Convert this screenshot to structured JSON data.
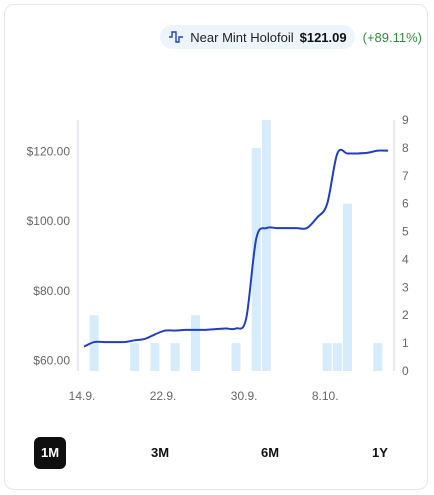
{
  "legend": {
    "icon": "price-line-icon",
    "condition": "Near Mint Holofoil",
    "price": "$121.09",
    "change": "(+89.11%)",
    "line_color": "#1f3fbf",
    "bar_color": "#d6ecfb",
    "change_color": "#2e8b3e"
  },
  "tabs": [
    {
      "label": "1M",
      "active": true
    },
    {
      "label": "3M",
      "active": false
    },
    {
      "label": "6M",
      "active": false
    },
    {
      "label": "1Y",
      "active": false
    }
  ],
  "chart_data": {
    "type": "line",
    "title": "",
    "x_ticks": [
      "14.9.",
      "22.9.",
      "30.9.",
      "8.10."
    ],
    "y_left": {
      "ticks": [
        "$60.00",
        "$80.00",
        "$100.00",
        "$120.00"
      ],
      "min": 60,
      "max": 120,
      "range": [
        57,
        129
      ]
    },
    "y_right": {
      "ticks": [
        "0",
        "1",
        "2",
        "3",
        "4",
        "5",
        "6",
        "7",
        "8",
        "9"
      ],
      "range": [
        0,
        9
      ]
    },
    "series": [
      {
        "type": "line",
        "values": [
          64,
          65.3,
          65.3,
          65.3,
          65.3,
          65.8,
          66.2,
          67.5,
          68.6,
          68.6,
          68.8,
          68.8,
          68.8,
          69,
          69.2,
          69.2,
          72,
          95,
          98,
          98,
          98,
          98,
          98,
          101,
          105,
          119.4,
          119.4,
          119.4,
          119.6,
          120.2,
          120.2
        ]
      },
      {
        "type": "bar",
        "values": [
          0,
          2,
          0,
          0,
          0,
          1,
          0,
          1,
          0,
          1,
          0,
          2,
          0,
          0,
          0,
          1,
          0,
          8,
          9,
          0,
          0,
          0,
          0,
          0,
          1,
          1,
          6,
          0,
          0,
          1,
          0
        ]
      }
    ],
    "grid": false
  }
}
